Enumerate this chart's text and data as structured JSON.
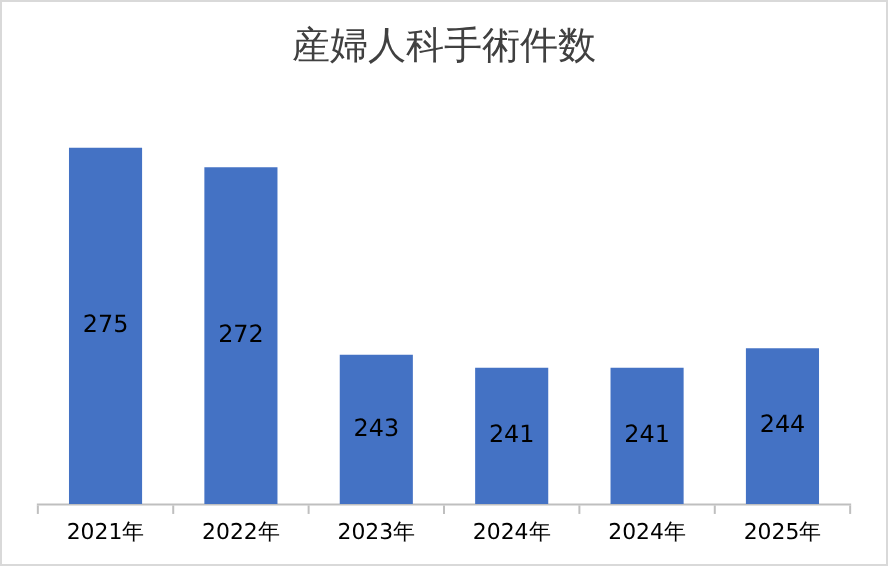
{
  "chart_data": {
    "type": "bar",
    "title": "産婦人科手術件数",
    "categories": [
      "2021年",
      "2022年",
      "2023年",
      "2024年",
      "2024年",
      "2025年"
    ],
    "values": [
      275,
      272,
      243,
      241,
      241,
      244
    ],
    "color": "#4472c4",
    "tick_labels": "x",
    "data_labels": true,
    "grid": false,
    "legend": false
  }
}
